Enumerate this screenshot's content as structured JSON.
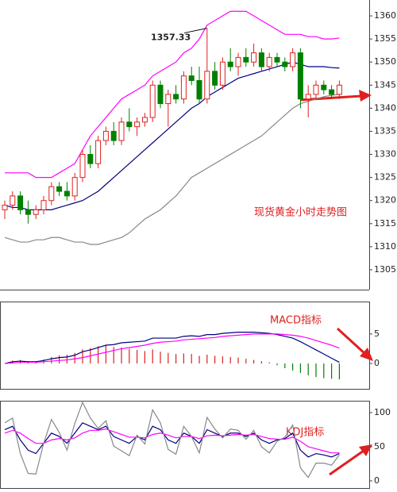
{
  "chart_data": [
    {
      "type": "candlestick",
      "title": "现货黄金小时走势图",
      "annotation": {
        "text": "1357.33",
        "value": 1357.33
      },
      "up_color": "#e02020",
      "down_color": "#008000",
      "open": [
        1318,
        1319,
        1321,
        1318,
        1317,
        1318,
        1320,
        1323,
        1322,
        1321,
        1325,
        1330,
        1328,
        1333,
        1335,
        1333,
        1337,
        1336,
        1337,
        1338,
        1345,
        1341,
        1343,
        1342,
        1347,
        1346,
        1342,
        1348,
        1345,
        1350,
        1349,
        1351,
        1350,
        1352,
        1349,
        1351,
        1350,
        1349,
        1352,
        1342,
        1343,
        1345,
        1344,
        1343
      ],
      "high": [
        1320,
        1322,
        1322,
        1320,
        1319,
        1321,
        1324,
        1324,
        1324,
        1326,
        1331,
        1332,
        1334,
        1336,
        1337,
        1338,
        1340,
        1338,
        1339,
        1346,
        1346,
        1344,
        1345,
        1348,
        1349,
        1349,
        1357.33,
        1350,
        1351,
        1353,
        1352,
        1353,
        1354,
        1353,
        1352,
        1352,
        1351,
        1353,
        1353,
        1345,
        1346,
        1346,
        1345,
        1346
      ],
      "low": [
        1316,
        1318,
        1317,
        1315,
        1316,
        1317,
        1319,
        1321,
        1320,
        1320,
        1324,
        1327,
        1327,
        1332,
        1332,
        1332,
        1335,
        1334,
        1336,
        1337,
        1340,
        1336,
        1341,
        1341,
        1345,
        1341,
        1341,
        1344,
        1344,
        1348,
        1347,
        1349,
        1349,
        1348,
        1348,
        1349,
        1348,
        1348,
        1340,
        1338,
        1342,
        1343,
        1342,
        1342
      ],
      "close": [
        1319,
        1321,
        1318,
        1317,
        1318,
        1320,
        1323,
        1322,
        1321,
        1325,
        1330,
        1328,
        1333,
        1335,
        1333,
        1337,
        1336,
        1337,
        1338,
        1345,
        1341,
        1343,
        1342,
        1347,
        1346,
        1342,
        1348,
        1345,
        1350,
        1349,
        1351,
        1350,
        1352,
        1349,
        1351,
        1350,
        1349,
        1352,
        1342,
        1343,
        1345,
        1344,
        1343,
        1345
      ],
      "series": [
        {
          "color": "#ff00ff",
          "values": [
            1326,
            1326,
            1326,
            1326,
            1325,
            1325,
            1325,
            1326,
            1327,
            1328,
            1331,
            1334,
            1336,
            1338,
            1340,
            1342,
            1343,
            1344,
            1345,
            1347,
            1348,
            1349,
            1350,
            1352,
            1353,
            1355,
            1358,
            1359,
            1360,
            1361,
            1361,
            1361,
            1360,
            1359,
            1358,
            1357,
            1356,
            1356,
            1356,
            1355.5,
            1355.5,
            1355,
            1355,
            1355.2
          ]
        },
        {
          "color": "#000080",
          "values": [
            1319,
            1318.5,
            1318.5,
            1318,
            1318,
            1318,
            1318,
            1318.5,
            1319,
            1319.5,
            1320,
            1321,
            1322,
            1323.5,
            1325,
            1326.5,
            1328,
            1329.5,
            1331,
            1332.5,
            1334,
            1335.5,
            1337,
            1338.5,
            1340,
            1341,
            1342.5,
            1343.5,
            1344.5,
            1345.5,
            1346.5,
            1347,
            1347.5,
            1348,
            1348.5,
            1349,
            1349.5,
            1350,
            1349.5,
            1349,
            1349,
            1349,
            1348.8,
            1348.7
          ]
        },
        {
          "color": "#888888",
          "values": [
            1312,
            1311.5,
            1311,
            1311,
            1311.5,
            1311.5,
            1312,
            1312,
            1311.5,
            1311,
            1311,
            1310.5,
            1310.5,
            1311,
            1311.5,
            1312,
            1313,
            1314.5,
            1316,
            1317,
            1318,
            1319.5,
            1321,
            1323,
            1325,
            1326,
            1327,
            1328,
            1329,
            1330,
            1331,
            1332,
            1333,
            1334,
            1335.5,
            1337,
            1338.5,
            1340,
            1341,
            1341.5,
            1342,
            1342.5,
            1342.8,
            1343
          ]
        }
      ],
      "ylim": [
        1300.7,
        1363.1
      ],
      "yticks": [
        {
          "value": 1305,
          "label": "1305.00"
        },
        {
          "value": 1310,
          "label": "1310.00"
        },
        {
          "value": 1315,
          "label": "1315.00"
        },
        {
          "value": 1320,
          "label": "1320.00"
        },
        {
          "value": 1325,
          "label": "1325.00"
        },
        {
          "value": 1330,
          "label": "1330.00"
        },
        {
          "value": 1335,
          "label": "1335.00"
        },
        {
          "value": 1340,
          "label": "1340.00"
        },
        {
          "value": 1345,
          "label": "1345.00"
        },
        {
          "value": 1350,
          "label": "1350.00"
        },
        {
          "value": 1355,
          "label": "1355.00"
        },
        {
          "value": 1360,
          "label": "1360.00"
        }
      ]
    },
    {
      "type": "macd",
      "title": "MACD指标",
      "up_color": "#e02020",
      "down_color": "#008000",
      "histogram": [
        0,
        0.5,
        0.6,
        0.4,
        0.4,
        0.7,
        1.1,
        1.4,
        1.5,
        1.8,
        2.4,
        2.6,
        2.9,
        3.1,
        2.8,
        2.7,
        2.5,
        2.3,
        2.1,
        2.4,
        2.0,
        1.8,
        1.6,
        1.7,
        1.6,
        1.3,
        1.5,
        1.3,
        1.2,
        1.1,
        1.0,
        0.8,
        0.6,
        0.4,
        0.2,
        -0.3,
        -0.8,
        -1.2,
        -1.6,
        -2.0,
        -2.3,
        -2.5,
        -2.6,
        -2.7
      ],
      "series": [
        {
          "color": "#000080",
          "values": [
            0.0,
            0.3,
            0.4,
            0.3,
            0.3,
            0.5,
            0.8,
            1.0,
            1.1,
            1.4,
            2.0,
            2.3,
            2.7,
            3.1,
            3.2,
            3.5,
            3.6,
            3.7,
            3.8,
            4.3,
            4.3,
            4.3,
            4.3,
            4.6,
            4.7,
            4.6,
            4.9,
            4.9,
            5.1,
            5.2,
            5.3,
            5.3,
            5.3,
            5.2,
            5.1,
            4.9,
            4.6,
            4.3,
            3.7,
            3.0,
            2.3,
            1.6,
            0.9,
            0.2
          ]
        },
        {
          "color": "#ff00ff",
          "values": [
            0.0,
            0.1,
            0.2,
            0.2,
            0.2,
            0.3,
            0.4,
            0.5,
            0.6,
            0.8,
            1.0,
            1.3,
            1.6,
            1.9,
            2.2,
            2.5,
            2.7,
            2.9,
            3.1,
            3.4,
            3.6,
            3.7,
            3.8,
            4.0,
            4.1,
            4.2,
            4.3,
            4.4,
            4.6,
            4.7,
            4.8,
            4.9,
            5.0,
            5.0,
            5.0,
            5.0,
            4.9,
            4.8,
            4.6,
            4.3,
            3.9,
            3.5,
            3.1,
            2.6
          ]
        }
      ],
      "ylim": [
        -4.3,
        10.5
      ],
      "yticks": [
        0,
        5
      ]
    },
    {
      "type": "kdj",
      "title": "KDJ指标",
      "series": [
        {
          "color": "#000080",
          "values": [
            75,
            80,
            60,
            45,
            40,
            55,
            70,
            65,
            55,
            70,
            85,
            80,
            75,
            80,
            65,
            60,
            55,
            65,
            60,
            80,
            75,
            60,
            55,
            70,
            65,
            55,
            75,
            70,
            65,
            70,
            70,
            65,
            70,
            60,
            55,
            60,
            62,
            70,
            45,
            35,
            40,
            38,
            35,
            40
          ]
        },
        {
          "color": "#ff00ff",
          "values": [
            70,
            74,
            70,
            62,
            55,
            55,
            60,
            62,
            60,
            63,
            70,
            74,
            74,
            76,
            72,
            68,
            64,
            64,
            63,
            68,
            70,
            67,
            63,
            65,
            65,
            62,
            66,
            67,
            66,
            67,
            68,
            67,
            68,
            65,
            62,
            61,
            61,
            64,
            58,
            50,
            47,
            44,
            41,
            41
          ]
        },
        {
          "color": "#888888",
          "values": [
            85,
            92,
            40,
            11,
            10,
            55,
            90,
            71,
            45,
            84,
            115,
            92,
            77,
            88,
            51,
            44,
            37,
            67,
            54,
            104,
            85,
            46,
            39,
            80,
            65,
            41,
            93,
            76,
            63,
            76,
            74,
            61,
            74,
            50,
            41,
            58,
            64,
            82,
            19,
            5,
            26,
            26,
            23,
            38
          ]
        }
      ],
      "ylim": [
        -10.5,
        117.4
      ],
      "yticks": [
        0,
        50,
        100
      ]
    }
  ]
}
